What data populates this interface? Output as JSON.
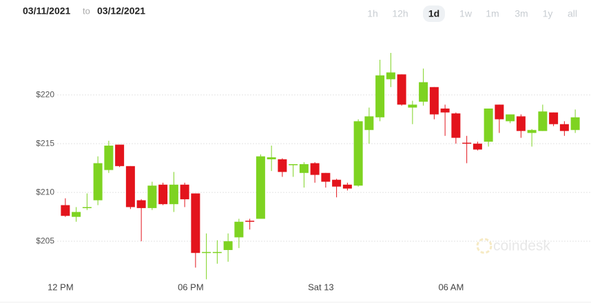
{
  "date_range": {
    "from": "03/11/2021",
    "separator": "to",
    "to": "03/12/2021"
  },
  "range_buttons": {
    "items": [
      "1h",
      "12h",
      "1d",
      "1w",
      "1m",
      "3m",
      "1y",
      "all"
    ],
    "selected": "1d"
  },
  "watermark": "coindesk",
  "chart_data": {
    "type": "candlestick",
    "categories": [
      "12 PM",
      null,
      null,
      null,
      null,
      null,
      null,
      null,
      null,
      null,
      null,
      null,
      "06 PM",
      null,
      null,
      null,
      null,
      null,
      null,
      null,
      null,
      null,
      null,
      null,
      "Sat 13",
      null,
      null,
      null,
      null,
      null,
      null,
      null,
      null,
      null,
      null,
      null,
      "06 AM",
      null,
      null,
      null,
      null,
      null,
      null,
      null,
      null,
      null,
      null,
      null
    ],
    "open": [
      208.7,
      207.5,
      208.4,
      209.2,
      212.3,
      214.9,
      212.7,
      209.2,
      208.4,
      210.8,
      208.8,
      210.8,
      209.9,
      203.8,
      203.8,
      204.1,
      205.4,
      207.1,
      207.3,
      213.4,
      213.4,
      212.8,
      212.0,
      213.0,
      212.0,
      211.3,
      210.8,
      210.7,
      216.4,
      217.7,
      221.6,
      222.1,
      218.7,
      219.3,
      220.8,
      218.6,
      218.1,
      215.1,
      215.0,
      215.2,
      219.0,
      217.3,
      217.8,
      216.1,
      216.3,
      218.2,
      217.0,
      216.4
    ],
    "high": [
      209.4,
      208.5,
      209.9,
      213.7,
      215.3,
      214.9,
      212.7,
      209.3,
      211.1,
      211.0,
      212.1,
      211.0,
      209.9,
      205.8,
      205.1,
      205.8,
      207.3,
      207.3,
      213.9,
      214.8,
      213.5,
      212.9,
      213.1,
      213.1,
      212.0,
      211.4,
      211.0,
      217.5,
      218.7,
      223.6,
      224.3,
      222.1,
      219.4,
      222.7,
      220.8,
      219.0,
      218.2,
      215.8,
      215.2,
      218.6,
      219.0,
      218.0,
      218.0,
      216.5,
      219.0,
      218.2,
      217.3,
      218.5
    ],
    "low": [
      207.5,
      207.0,
      208.2,
      208.7,
      212.0,
      212.6,
      208.3,
      205.0,
      208.2,
      208.7,
      208.0,
      208.5,
      202.3,
      201.1,
      202.7,
      202.9,
      204.3,
      206.2,
      207.3,
      212.2,
      211.6,
      211.6,
      210.5,
      211.0,
      210.5,
      209.5,
      210.2,
      210.6,
      215.0,
      217.3,
      220.8,
      218.9,
      217.0,
      218.9,
      217.5,
      215.8,
      215.0,
      213.0,
      214.3,
      214.7,
      216.1,
      217.1,
      215.6,
      214.7,
      216.3,
      216.8,
      215.8,
      216.1
    ],
    "close": [
      207.6,
      208.0,
      208.5,
      213.0,
      214.8,
      212.7,
      208.5,
      208.4,
      210.7,
      208.8,
      210.8,
      209.3,
      203.8,
      203.9,
      203.9,
      205.0,
      207.0,
      207.0,
      213.7,
      213.6,
      212.1,
      212.9,
      212.9,
      211.8,
      211.1,
      210.6,
      210.4,
      217.3,
      217.8,
      222.0,
      222.3,
      219.0,
      219.0,
      221.3,
      218.0,
      218.2,
      215.6,
      215.0,
      214.4,
      218.6,
      217.5,
      218.0,
      216.3,
      216.4,
      218.3,
      217.0,
      216.3,
      217.7
    ],
    "up_color": "#7ed321",
    "down_color": "#e3141c",
    "ylim": [
      201,
      225.5
    ],
    "yticks": [
      {
        "value": 205,
        "label": "$205"
      },
      {
        "value": 210,
        "label": "$210"
      },
      {
        "value": 215,
        "label": "$215"
      },
      {
        "value": 220,
        "label": "$220"
      }
    ],
    "grid": true
  }
}
